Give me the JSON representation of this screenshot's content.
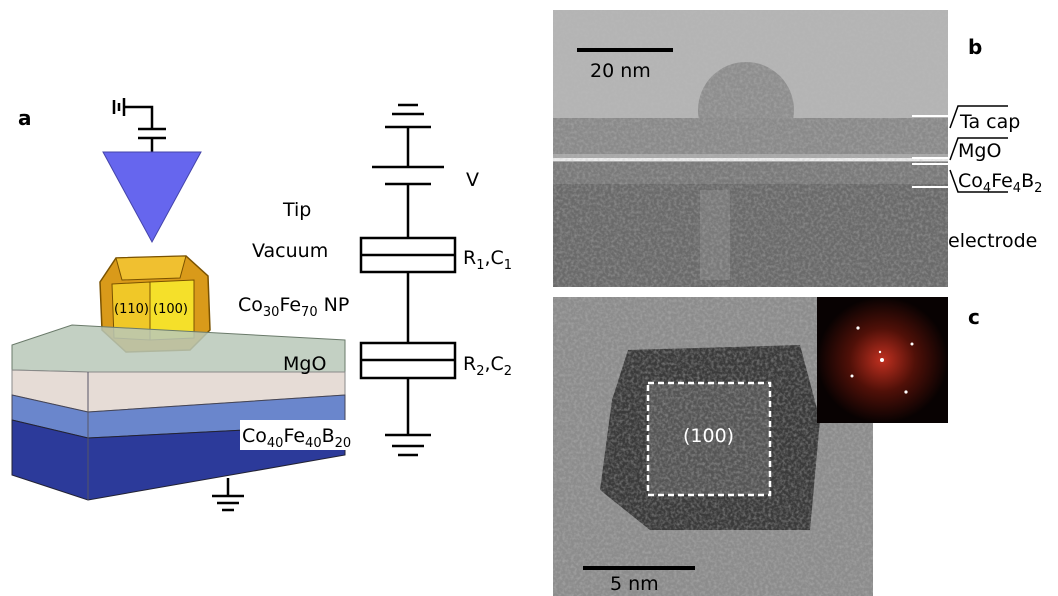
{
  "panel_a": {
    "label": "a",
    "tip": "Tip",
    "vacuum": "Vacuum",
    "nanoparticle": [
      {
        "text": "Co"
      },
      {
        "text": "30",
        "sub": true
      },
      {
        "text": "Fe"
      },
      {
        "text": "70",
        "sub": true
      },
      {
        "text": " NP"
      }
    ],
    "barrier": "MgO",
    "electrode": [
      {
        "text": "Co"
      },
      {
        "text": "40",
        "sub": true
      },
      {
        "text": "Fe"
      },
      {
        "text": "40",
        "sub": true
      },
      {
        "text": "B"
      },
      {
        "text": "20",
        "sub": true
      }
    ],
    "voltage": "V",
    "element_1": [
      {
        "text": "R"
      },
      {
        "text": "1",
        "sub": true
      },
      {
        "text": ",C"
      },
      {
        "text": "1",
        "sub": true
      }
    ],
    "element_2": [
      {
        "text": "R"
      },
      {
        "text": "2",
        "sub": true
      },
      {
        "text": ",C"
      },
      {
        "text": "2",
        "sub": true
      }
    ],
    "facet_110": "(110)",
    "facet_100": "(100)"
  },
  "panel_b": {
    "label": "b",
    "scale_bar": "20 nm",
    "layer_1": [
      {
        "text": "Ta cap"
      }
    ],
    "layer_2": [
      {
        "text": "MgO"
      }
    ],
    "layer_3": [
      {
        "text": "Co"
      },
      {
        "text": "4",
        "sub": true
      },
      {
        "text": "Fe"
      },
      {
        "text": "4",
        "sub": true
      },
      {
        "text": "B"
      },
      {
        "text": "2",
        "sub": true
      }
    ],
    "layer_4": [
      {
        "text": "electrode"
      }
    ]
  },
  "panel_c": {
    "label": "c",
    "scale_bar": "5 nm",
    "facet": "(100)"
  }
}
